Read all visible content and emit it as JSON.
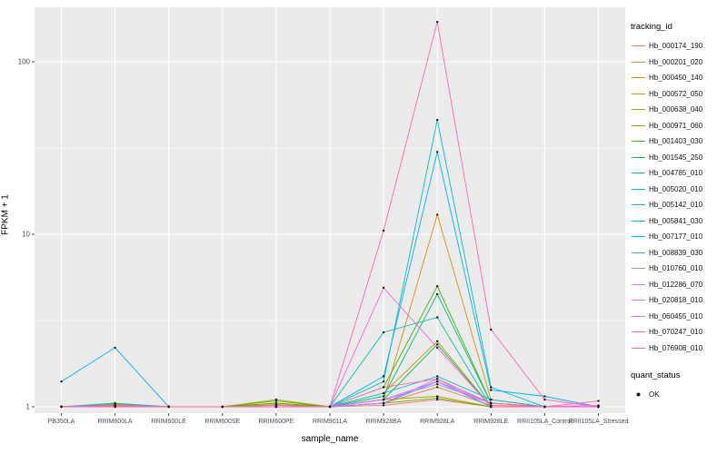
{
  "chart_data": {
    "type": "line",
    "title": "",
    "xlabel": "sample_name",
    "ylabel": "FPKM + 1",
    "yscale": "log10",
    "ylim": [
      0.92,
      210
    ],
    "yticks": [
      1,
      10,
      100
    ],
    "grid": true,
    "panel_bg": "#EBEBEB",
    "grid_color": "#FFFFFF",
    "point_color": "#1a1a1a",
    "legend_title": "tracking_id",
    "legend2_title": "quant_status",
    "legend2_items": [
      {
        "label": "OK"
      }
    ],
    "categories": [
      "PB350LA",
      "RRIM600LA",
      "RRIM600LE",
      "RRIM600SE",
      "RRIM600PE",
      "RRIM901LA",
      "RRIM928BA",
      "RRIM928LA",
      "RRIM928LE",
      "RRII105LA_Control",
      "RRII105LA_Stressed"
    ],
    "series": [
      {
        "name": "Hb_000174_190",
        "color": "#F8766D",
        "values": [
          1,
          1.01,
          1,
          1,
          1,
          1,
          1.02,
          1.1,
          1,
          1,
          1
        ]
      },
      {
        "name": "Hb_000201_020",
        "color": "#EA8331",
        "values": [
          1,
          1.02,
          1,
          1,
          1,
          1,
          1.05,
          1.3,
          1.02,
          1,
          1
        ]
      },
      {
        "name": "Hb_000450_140",
        "color": "#D89000",
        "values": [
          1,
          1,
          1,
          1,
          1,
          1,
          1.1,
          13,
          1.1,
          1,
          1
        ]
      },
      {
        "name": "Hb_000572_050",
        "color": "#C09B00",
        "values": [
          1,
          1.04,
          1,
          1,
          1.03,
          1,
          1.2,
          2.4,
          1,
          1,
          1
        ]
      },
      {
        "name": "Hb_000638_040",
        "color": "#A3A500",
        "values": [
          1,
          1,
          1,
          1,
          1.1,
          1,
          1.1,
          1.15,
          1,
          1,
          1
        ]
      },
      {
        "name": "Hb_000971_060",
        "color": "#7CAE00",
        "values": [
          1,
          1.03,
          1,
          1,
          1.08,
          1,
          1.05,
          1.12,
          1,
          1,
          1
        ]
      },
      {
        "name": "Hb_001403_030",
        "color": "#39B600",
        "values": [
          1,
          1,
          1,
          1,
          1.05,
          1,
          1.3,
          5.0,
          1.05,
          1,
          1
        ]
      },
      {
        "name": "Hb_001545_250",
        "color": "#00BB4E",
        "values": [
          1,
          1.02,
          1,
          1,
          1,
          1,
          1.1,
          2.3,
          1,
          1,
          1
        ]
      },
      {
        "name": "Hb_004785_010",
        "color": "#00BF7D",
        "values": [
          1,
          1,
          1,
          1,
          1,
          1,
          1.15,
          4.5,
          1.05,
          1,
          1
        ]
      },
      {
        "name": "Hb_005020_010",
        "color": "#00C1A3",
        "values": [
          1,
          1,
          1,
          1,
          1,
          1,
          2.7,
          3.3,
          1,
          1,
          1
        ]
      },
      {
        "name": "Hb_005142_010",
        "color": "#00BFC4",
        "values": [
          1,
          1,
          1,
          1,
          1,
          1,
          1.4,
          46,
          1.3,
          1,
          1
        ]
      },
      {
        "name": "Hb_005841_030",
        "color": "#00BAE0",
        "values": [
          1,
          1.05,
          1,
          1,
          1,
          1,
          1.2,
          1.5,
          1.1,
          1,
          1
        ]
      },
      {
        "name": "Hb_007177_010",
        "color": "#00B0F6",
        "values": [
          1.4,
          2.2,
          1,
          1,
          1,
          1,
          1.5,
          30,
          1.25,
          1.15,
          1
        ]
      },
      {
        "name": "Hb_008839_030",
        "color": "#35A2FF",
        "values": [
          1,
          1.02,
          1,
          1,
          1,
          1,
          1.05,
          1.4,
          1,
          1,
          1
        ]
      },
      {
        "name": "Hb_010760_010",
        "color": "#9590FF",
        "values": [
          1,
          1,
          1,
          1,
          1,
          1,
          1.1,
          1.35,
          1.05,
          1,
          1
        ]
      },
      {
        "name": "Hb_012286_070",
        "color": "#C77CFF",
        "values": [
          1,
          1,
          1,
          1,
          1,
          1,
          1.05,
          1.45,
          1,
          1,
          1
        ]
      },
      {
        "name": "Hb_020818_010",
        "color": "#E76BF3",
        "values": [
          1,
          1.02,
          1,
          1,
          1,
          1,
          1.1,
          1.4,
          1.05,
          1,
          1.02
        ]
      },
      {
        "name": "Hb_060455_010",
        "color": "#FA62DB",
        "values": [
          1,
          1,
          1,
          1,
          1,
          1,
          4.9,
          2.2,
          1,
          1,
          1
        ]
      },
      {
        "name": "Hb_070247_010",
        "color": "#FF62BC",
        "values": [
          1,
          1,
          1,
          1,
          1,
          1,
          10.5,
          170,
          2.8,
          1.1,
          1
        ]
      },
      {
        "name": "Hb_076908_010",
        "color": "#FF6A98",
        "values": [
          1,
          1.02,
          1,
          1,
          1.02,
          1,
          1.3,
          1.45,
          1.05,
          1,
          1.08
        ]
      }
    ]
  }
}
